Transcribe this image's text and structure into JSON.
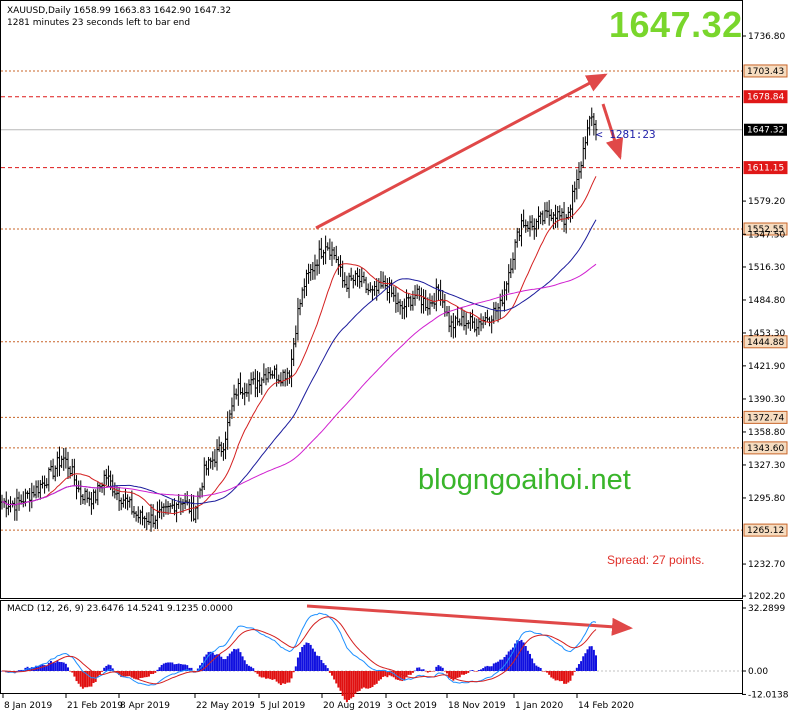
{
  "header": {
    "symbol_line": "XAUUSD,Daily  1658.99 1663.83 1642.90 1647.32",
    "timer_line": "1281 minutes 23 seconds left to bar end"
  },
  "big_price": "1647.32",
  "bar_timer": "< 1281:23",
  "watermark": "blogngoaihoi.net",
  "spread_text": "Spread: 27 points.",
  "macd_label": "MACD (12, 26, 9) 23.6476 14.5241 9.1235 0.0000",
  "colors": {
    "ma_fast": "#d42020",
    "ma_mid": "#1c1c9c",
    "ma_slow": "#d020d0",
    "macd_pos": "#1010e0",
    "macd_neg": "#e01010",
    "level": "#c86428",
    "annot": "#e04848"
  },
  "chart_data": [
    {
      "type": "line",
      "title": "XAUUSD,Daily",
      "x_ticks": [
        "8 Jan 2019",
        "21 Feb 2019",
        "8 Apr 2019",
        "22 May 2019",
        "5 Jul 2019",
        "20 Aug 2019",
        "3 Oct 2019",
        "18 Nov 2019",
        "1 Jan 2020",
        "14 Feb 2020"
      ],
      "y_ticks": [
        "1736.80",
        "1579.20",
        "1547.50",
        "1516.30",
        "1484.80",
        "1453.30",
        "1421.90",
        "1390.30",
        "1358.80",
        "1327.30",
        "1295.80",
        "1232.70",
        "1202.20"
      ],
      "ylim": [
        1202.2,
        1750
      ],
      "levels": [
        {
          "value": 1703.43,
          "label": "1703.43",
          "style": "dotted"
        },
        {
          "value": 1678.84,
          "label": "1678.84",
          "style": "dashed-red"
        },
        {
          "value": 1611.15,
          "label": "1611.15",
          "style": "dashed-red"
        },
        {
          "value": 1552.55,
          "label": "1552.55",
          "style": "dotted"
        },
        {
          "value": 1444.88,
          "label": "1444.88",
          "style": "dotted"
        },
        {
          "value": 1372.74,
          "label": "1372.74",
          "style": "dotted"
        },
        {
          "value": 1343.6,
          "label": "1343.60",
          "style": "dotted"
        },
        {
          "value": 1265.12,
          "label": "1265.12",
          "style": "dotted"
        }
      ],
      "current_price": {
        "value": 1647.32,
        "label": "1647.32"
      },
      "close_series": [
        {
          "x": 0,
          "y": 1292
        },
        {
          "x": 0.02,
          "y": 1290
        },
        {
          "x": 0.05,
          "y": 1305
        },
        {
          "x": 0.07,
          "y": 1320
        },
        {
          "x": 0.085,
          "y": 1335
        },
        {
          "x": 0.095,
          "y": 1325
        },
        {
          "x": 0.11,
          "y": 1300
        },
        {
          "x": 0.13,
          "y": 1295
        },
        {
          "x": 0.145,
          "y": 1318
        },
        {
          "x": 0.16,
          "y": 1302
        },
        {
          "x": 0.175,
          "y": 1292
        },
        {
          "x": 0.19,
          "y": 1278
        },
        {
          "x": 0.21,
          "y": 1276
        },
        {
          "x": 0.23,
          "y": 1282
        },
        {
          "x": 0.25,
          "y": 1295
        },
        {
          "x": 0.27,
          "y": 1282
        },
        {
          "x": 0.285,
          "y": 1322
        },
        {
          "x": 0.31,
          "y": 1345
        },
        {
          "x": 0.33,
          "y": 1400
        },
        {
          "x": 0.355,
          "y": 1405
        },
        {
          "x": 0.375,
          "y": 1418
        },
        {
          "x": 0.39,
          "y": 1412
        },
        {
          "x": 0.405,
          "y": 1418
        },
        {
          "x": 0.415,
          "y": 1470
        },
        {
          "x": 0.425,
          "y": 1500
        },
        {
          "x": 0.44,
          "y": 1520
        },
        {
          "x": 0.455,
          "y": 1540
        },
        {
          "x": 0.47,
          "y": 1525
        },
        {
          "x": 0.48,
          "y": 1500
        },
        {
          "x": 0.5,
          "y": 1505
        },
        {
          "x": 0.52,
          "y": 1490
        },
        {
          "x": 0.54,
          "y": 1500
        },
        {
          "x": 0.56,
          "y": 1475
        },
        {
          "x": 0.58,
          "y": 1490
        },
        {
          "x": 0.6,
          "y": 1480
        },
        {
          "x": 0.615,
          "y": 1495
        },
        {
          "x": 0.63,
          "y": 1460
        },
        {
          "x": 0.65,
          "y": 1465
        },
        {
          "x": 0.665,
          "y": 1462
        },
        {
          "x": 0.685,
          "y": 1470
        },
        {
          "x": 0.7,
          "y": 1478
        },
        {
          "x": 0.715,
          "y": 1520
        },
        {
          "x": 0.73,
          "y": 1560
        },
        {
          "x": 0.745,
          "y": 1555
        },
        {
          "x": 0.76,
          "y": 1562
        },
        {
          "x": 0.775,
          "y": 1570
        },
        {
          "x": 0.79,
          "y": 1560
        },
        {
          "x": 0.8,
          "y": 1578
        },
        {
          "x": 0.81,
          "y": 1600
        },
        {
          "x": 0.82,
          "y": 1640
        },
        {
          "x": 0.83,
          "y": 1660
        },
        {
          "x": 0.835,
          "y": 1647
        }
      ]
    },
    {
      "type": "bar",
      "title": "MACD (12, 26, 9)",
      "y_ticks": [
        "32.2899",
        "0.00",
        "-12.0138"
      ],
      "ylim": [
        -12.0138,
        32.2899
      ]
    }
  ]
}
